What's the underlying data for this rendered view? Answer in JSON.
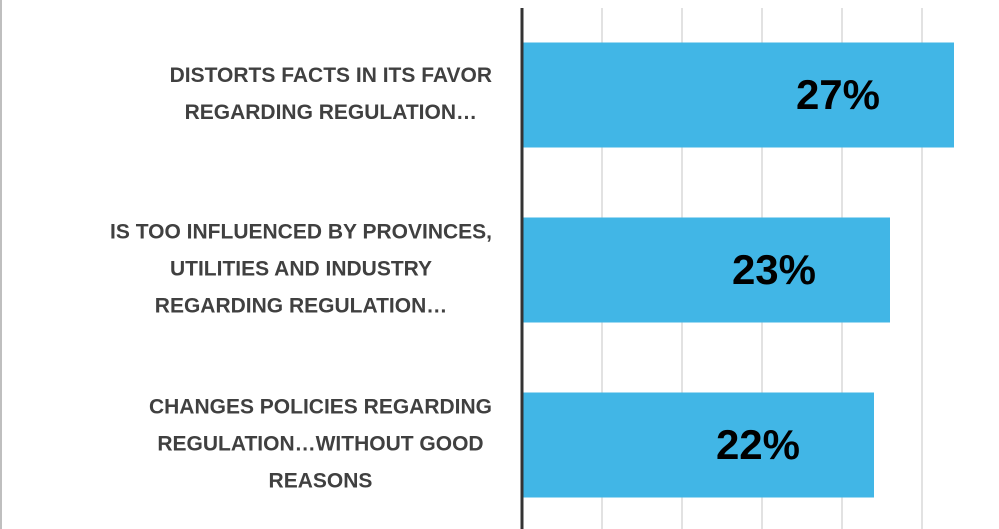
{
  "chart_data": {
    "type": "barh",
    "categories": [
      [
        "DISTORTS FACTS IN ITS FAVOR",
        "REGARDING REGULATION…"
      ],
      [
        "IS TOO INFLUENCED BY PROVINCES,",
        "UTILITIES AND INDUSTRY",
        "REGARDING REGULATION…"
      ],
      [
        "CHANGES POLICIES REGARDING",
        "REGULATION…WITHOUT GOOD",
        "REASONS"
      ]
    ],
    "values": [
      27,
      23,
      22
    ],
    "value_labels": [
      "27%",
      "23%",
      "22%"
    ],
    "color": "#41b6e6",
    "xlim": [
      0,
      30
    ],
    "xticks": [
      0,
      5,
      10,
      15,
      20,
      25
    ],
    "grid": true
  }
}
